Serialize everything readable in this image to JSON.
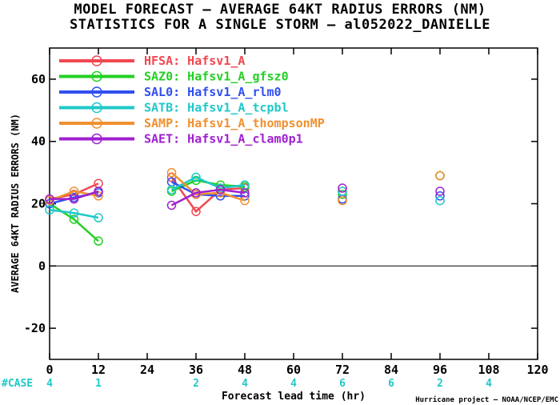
{
  "chart_data": {
    "type": "line",
    "title": "MODEL FORECAST – AVERAGE 64KT RADIUS ERRORS (NM)",
    "subtitle": "STATISTICS FOR A SINGLE STORM – al052022_DANIELLE",
    "xlabel": "Forecast lead time (hr)",
    "ylabel": "AVERAGE 64KT RADIUS ERRORS (NM)",
    "xlim": [
      0,
      120
    ],
    "ylim": [
      -30,
      70
    ],
    "x_ticks": [
      0,
      12,
      24,
      36,
      48,
      60,
      72,
      84,
      96,
      108,
      120
    ],
    "y_ticks": [
      -20,
      0,
      20,
      40,
      60
    ],
    "legend_position": "top-left",
    "series": [
      {
        "name": "HFSA",
        "label": "HFSA: Hafsv1_A",
        "color": "#f04850",
        "points": [
          [
            0,
            21.5
          ],
          [
            6,
            23
          ],
          [
            12,
            26.5
          ],
          [
            30,
            28.5
          ],
          [
            36,
            17.5
          ],
          [
            42,
            24.5
          ],
          [
            48,
            25
          ],
          [
            72,
            24
          ],
          [
            96,
            29
          ]
        ]
      },
      {
        "name": "SAZ0",
        "label": "SAZ0: Hafsv1_A_gfsz0",
        "color": "#24d024",
        "points": [
          [
            0,
            20
          ],
          [
            6,
            15
          ],
          [
            12,
            8
          ],
          [
            30,
            24
          ],
          [
            36,
            27.5
          ],
          [
            42,
            26
          ],
          [
            48,
            25.5
          ],
          [
            72,
            23
          ],
          [
            96,
            29
          ]
        ]
      },
      {
        "name": "SAL0",
        "label": "SAL0: Hafsv1_A_rlm0",
        "color": "#3050f0",
        "points": [
          [
            0,
            20
          ],
          [
            6,
            22
          ],
          [
            12,
            23.5
          ],
          [
            30,
            27
          ],
          [
            36,
            23
          ],
          [
            42,
            22.5
          ],
          [
            48,
            22.5
          ],
          [
            72,
            21.5
          ],
          [
            96,
            22.5
          ]
        ]
      },
      {
        "name": "SATB",
        "label": "SATB: Hafsv1_A_tcpbl",
        "color": "#20c8c8",
        "points": [
          [
            0,
            18
          ],
          [
            6,
            17
          ],
          [
            12,
            15.5
          ],
          [
            30,
            24.5
          ],
          [
            36,
            28.5
          ],
          [
            42,
            25
          ],
          [
            48,
            26
          ],
          [
            72,
            24
          ],
          [
            96,
            21
          ]
        ]
      },
      {
        "name": "SAMP",
        "label": "SAMP: Hafsv1_A_thompsonMP",
        "color": "#f09030",
        "points": [
          [
            0,
            21
          ],
          [
            6,
            24
          ],
          [
            12,
            22.5
          ],
          [
            30,
            30
          ],
          [
            36,
            23
          ],
          [
            42,
            23.5
          ],
          [
            48,
            21
          ],
          [
            72,
            21
          ],
          [
            96,
            29
          ]
        ]
      },
      {
        "name": "SAET",
        "label": "SAET: Hafsv1_A_clam0p1",
        "color": "#a020d0",
        "points": [
          [
            0,
            21.5
          ],
          [
            6,
            21.5
          ],
          [
            12,
            24
          ],
          [
            30,
            19.5
          ],
          [
            36,
            23.5
          ],
          [
            42,
            24.5
          ],
          [
            48,
            23.5
          ],
          [
            72,
            25
          ],
          [
            96,
            24
          ]
        ]
      }
    ],
    "case_label": "#CASE",
    "case_color": "#20c8c8",
    "cases": [
      {
        "x": 0,
        "n": "4"
      },
      {
        "x": 12,
        "n": "1"
      },
      {
        "x": 36,
        "n": "2"
      },
      {
        "x": 48,
        "n": "4"
      },
      {
        "x": 60,
        "n": "4"
      },
      {
        "x": 72,
        "n": "6"
      },
      {
        "x": 84,
        "n": "6"
      },
      {
        "x": 96,
        "n": "2"
      },
      {
        "x": 108,
        "n": "4"
      }
    ],
    "credit": "Hurricane project – NOAA/NCEP/EMC",
    "grid": false
  }
}
